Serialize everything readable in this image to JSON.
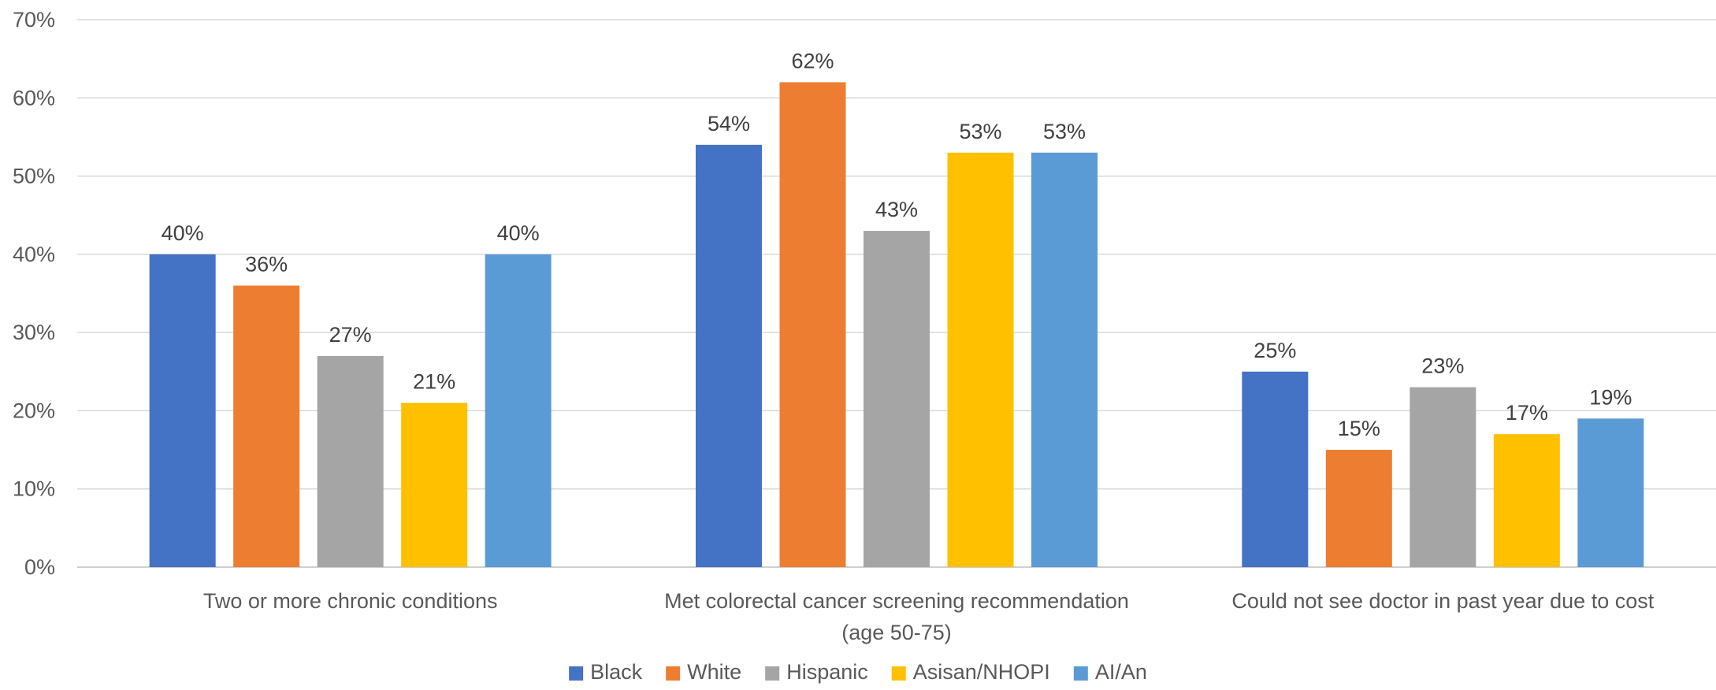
{
  "chart_data": {
    "type": "bar",
    "categories": [
      [
        "Two or more chronic conditions"
      ],
      [
        "Met colorectal cancer screening recommendation",
        "(age 50-75)"
      ],
      [
        "Could not see doctor in past year due to cost"
      ]
    ],
    "series": [
      {
        "name": "Black",
        "color": "#4472c4",
        "values": [
          40,
          54,
          25
        ],
        "labels": [
          "40%",
          "54%",
          "25%"
        ]
      },
      {
        "name": "White",
        "color": "#ed7d31",
        "values": [
          36,
          62,
          15
        ],
        "labels": [
          "36%",
          "62%",
          "15%"
        ]
      },
      {
        "name": "Hispanic",
        "color": "#a5a5a5",
        "values": [
          27,
          43,
          23
        ],
        "labels": [
          "27%",
          "43%",
          "23%"
        ]
      },
      {
        "name": "Asisan/NHOPI",
        "color": "#ffc000",
        "values": [
          21,
          53,
          17
        ],
        "labels": [
          "21%",
          "53%",
          "17%"
        ]
      },
      {
        "name": "AI/An",
        "color": "#5b9bd5",
        "values": [
          40,
          53,
          19
        ],
        "labels": [
          "40%",
          "53%",
          "19%"
        ]
      }
    ],
    "yticks": [
      "0%",
      "10%",
      "20%",
      "30%",
      "40%",
      "50%",
      "60%",
      "70%"
    ],
    "ylim": [
      0,
      70
    ],
    "grid": true,
    "legend_position": "bottom",
    "title": "",
    "xlabel": "",
    "ylabel": ""
  }
}
